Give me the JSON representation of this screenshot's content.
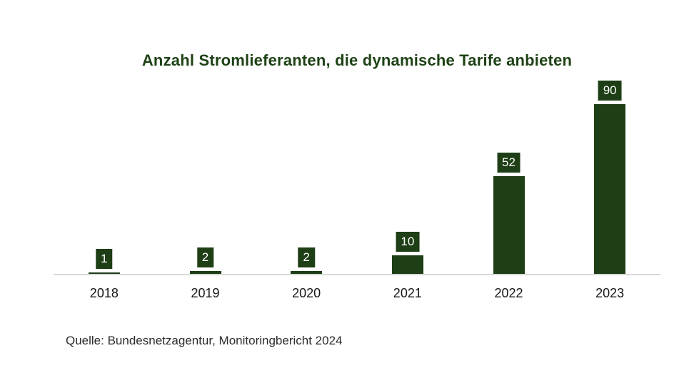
{
  "chart_data": {
    "type": "bar",
    "title": "Anzahl Stromlieferanten, die dynamische Tarife anbieten",
    "categories": [
      "2018",
      "2019",
      "2020",
      "2021",
      "2022",
      "2023"
    ],
    "values": [
      1,
      2,
      2,
      10,
      52,
      90
    ],
    "xlabel": "",
    "ylabel": "",
    "ylim": [
      0,
      90
    ],
    "grid": false,
    "legend": "none",
    "data_labels_visible": true,
    "colors": {
      "bar": "#1e3e16",
      "title": "#1e4216",
      "value_label_bg": "#1e3e16",
      "value_label_text": "#ffffff",
      "axis_line": "#d8d8d8",
      "tick_label": "#161616"
    }
  },
  "footer": {
    "source": "Quelle: Bundesnetzagentur, Monitoringbericht 2024"
  }
}
